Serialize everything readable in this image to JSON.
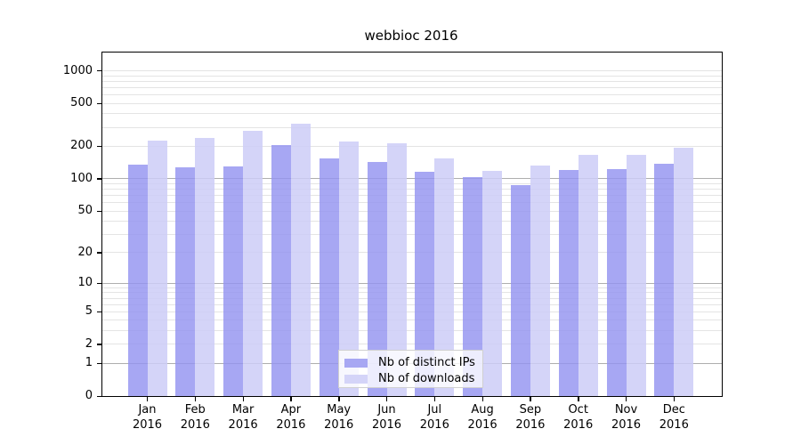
{
  "figure": {
    "title": "webbioc 2016"
  },
  "chart_data": {
    "type": "bar",
    "title": "webbioc 2016",
    "categories": [
      "Jan",
      "Feb",
      "Mar",
      "Apr",
      "May",
      "Jun",
      "Jul",
      "Aug",
      "Sep",
      "Oct",
      "Nov",
      "Dec"
    ],
    "category_year": "2016",
    "series": [
      {
        "name": "Nb of distinct IPs",
        "color": "rgba(148,148,240,0.82)",
        "values": [
          136,
          127,
          130,
          205,
          154,
          144,
          117,
          103,
          88,
          121,
          124,
          138
        ]
      },
      {
        "name": "Nb of downloads",
        "color": "rgba(205,205,247,0.85)",
        "values": [
          228,
          239,
          280,
          324,
          224,
          215,
          154,
          119,
          133,
          167,
          168,
          193
        ]
      }
    ],
    "xlabel": "",
    "ylabel": "",
    "y_scale": "log10(1+x)",
    "y_ticks": [
      0,
      1,
      2,
      5,
      10,
      20,
      50,
      100,
      200,
      500,
      1000
    ],
    "y_major_gridlines": [
      1,
      10,
      100
    ],
    "ylim": [
      0,
      1400
    ],
    "grid": true,
    "legend_position": "bottom-center",
    "colors": {
      "bar_distinct_ips": "#a7a7f3",
      "bar_downloads": "#d4d4f8",
      "major_grid": "#aeaeae",
      "minor_grid": "#e4e4e4",
      "axis": "#000000"
    }
  }
}
